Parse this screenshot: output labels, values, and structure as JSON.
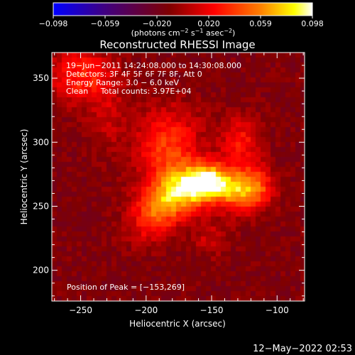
{
  "chart_data": {
    "type": "heatmap",
    "title": "Reconstructed RHESSI Image",
    "xlabel": "Heliocentric X (arcsec)",
    "ylabel": "Heliocentric Y (arcsec)",
    "xlim": [
      -272,
      -79
    ],
    "ylim": [
      176,
      370
    ],
    "xticks": [
      -250,
      -200,
      -150,
      -100
    ],
    "yticks": [
      200,
      250,
      300,
      350
    ],
    "colorbar": {
      "range": [
        -0.098,
        0.098
      ],
      "ticks": [
        "−0.098",
        "−0.059",
        "−0.020",
        "0.020",
        "0.059",
        "0.098"
      ],
      "units": "(photons cm",
      "units_exp1": "−2",
      "units_mid": " s",
      "units_exp2": "−1",
      "units_mid2": " asec",
      "units_exp3": "−2",
      "units_end": ")",
      "colors": [
        "#0000ff",
        "#400080",
        "#800000",
        "#ff0000",
        "#ff8000",
        "#ffff00",
        "#ffffff"
      ]
    },
    "annotations": [
      "19−Jun−2011 14:24:08.000 to 14:30:08.000",
      "Detectors: 3F 4F 5F 6F 7F 8F, Att 0",
      "Energy Range: 3.0 − 6.0 keV",
      "Clean     Total counts: 3.97E+04"
    ],
    "peak_label": "Position of Peak = [−153,269]",
    "peak": [
      -153,
      269
    ],
    "sources": [
      {
        "x": -153,
        "y": 269,
        "sx": 12,
        "sy": 10,
        "amp": 0.098
      },
      {
        "x": -173,
        "y": 262,
        "sx": 14,
        "sy": 12,
        "amp": 0.07
      },
      {
        "x": -130,
        "y": 262,
        "sx": 12,
        "sy": 11,
        "amp": 0.065
      },
      {
        "x": -192,
        "y": 248,
        "sx": 13,
        "sy": 12,
        "amp": 0.055
      },
      {
        "x": -183,
        "y": 296,
        "sx": 18,
        "sy": 22,
        "amp": 0.05
      },
      {
        "x": -128,
        "y": 300,
        "sx": 10,
        "sy": 14,
        "amp": 0.04
      },
      {
        "x": -115,
        "y": 265,
        "sx": 10,
        "sy": 12,
        "amp": 0.04
      },
      {
        "x": -250,
        "y": 352,
        "sx": 18,
        "sy": 15,
        "amp": 0.045
      },
      {
        "x": -230,
        "y": 320,
        "sx": 10,
        "sy": 18,
        "amp": 0.02
      },
      {
        "x": -150,
        "y": 225,
        "sx": 10,
        "sy": 10,
        "amp": 0.022
      },
      {
        "x": -200,
        "y": 230,
        "sx": 14,
        "sy": 10,
        "amp": 0.018
      }
    ],
    "background_level": -0.012
  },
  "footer": {
    "timestamp": "12−May−2022 02:53"
  }
}
